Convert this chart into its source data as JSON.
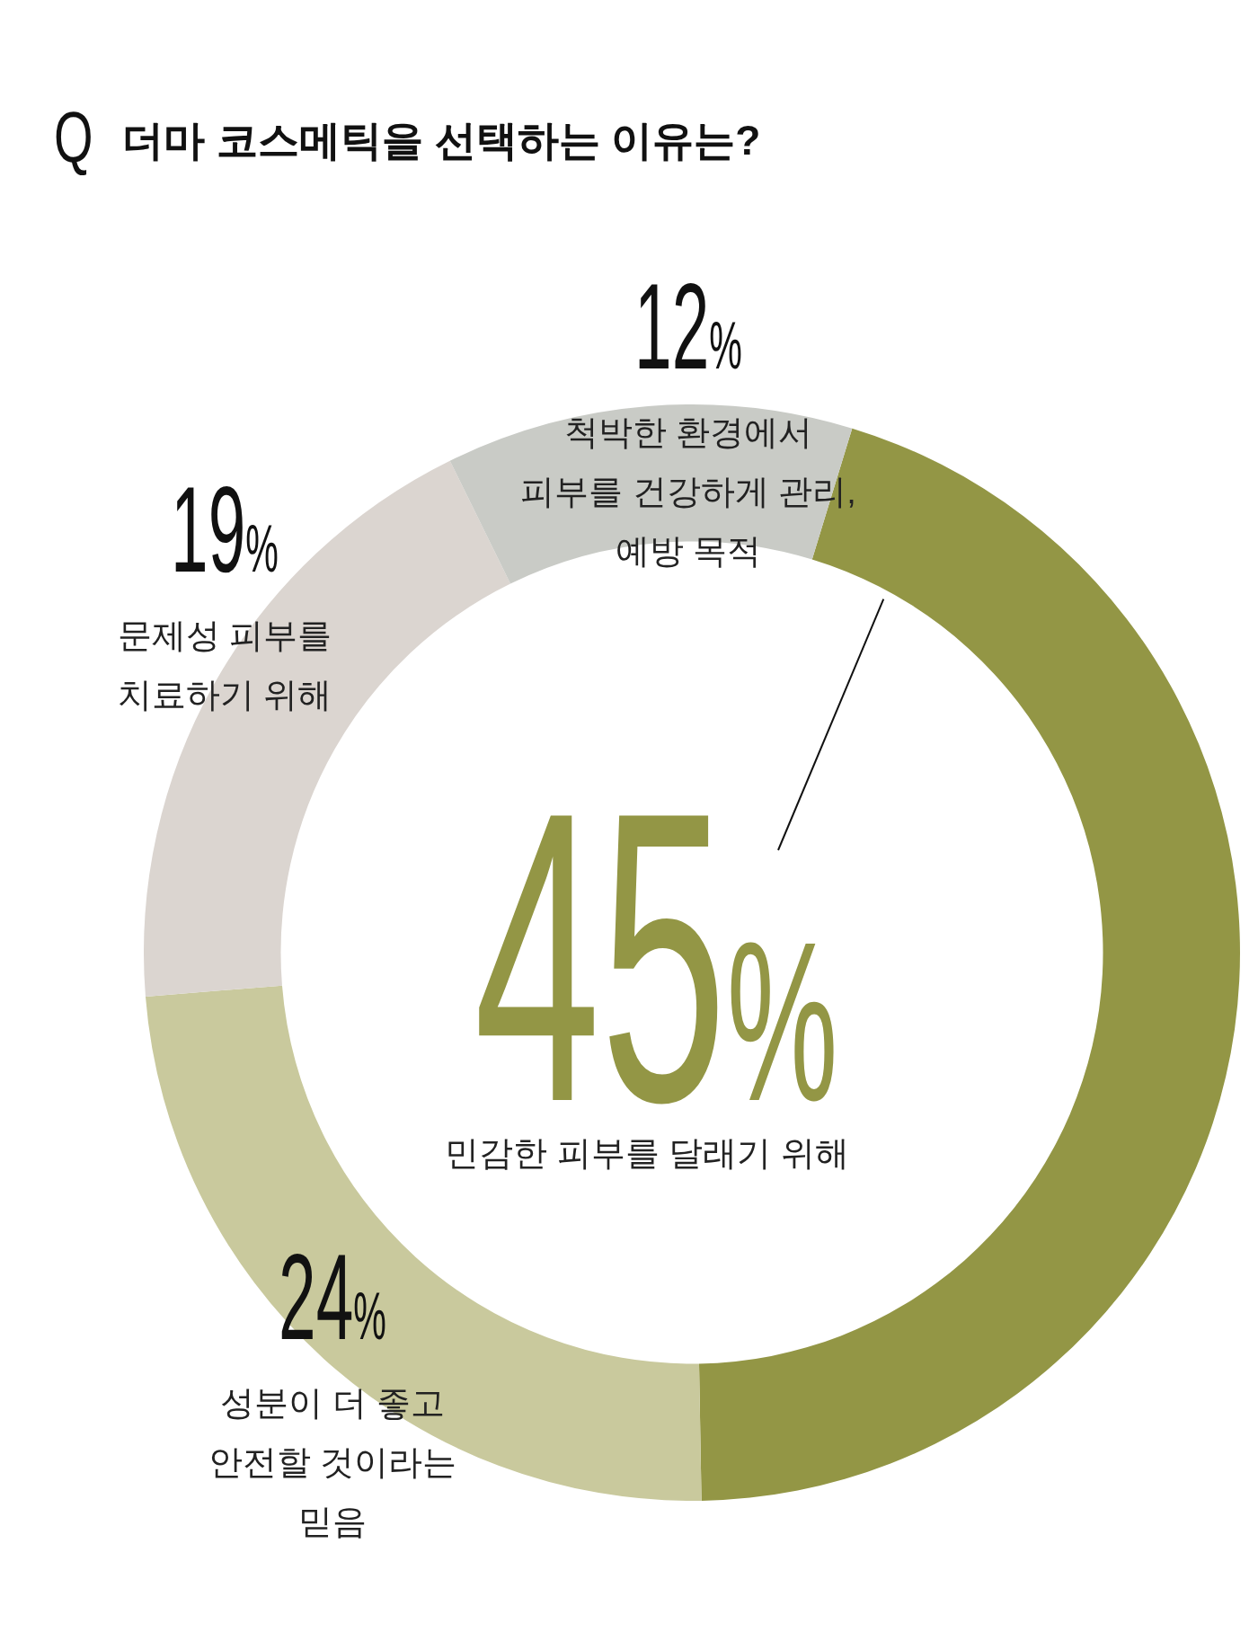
{
  "chart_data": {
    "type": "donut",
    "title": "Q 더마 코스메틱을 선택하는 이유는?",
    "categories": [
      "민감한 피부를 달래기 위해",
      "성분이 더 좋고\n안전할 것이라는\n믿음",
      "문제성 피부를\n치료하기 위해",
      "척박한 환경에서\n피부를 건강하게 관리,\n예방 목적"
    ],
    "values": [
      45,
      24,
      19,
      12
    ],
    "colors": [
      "#939645",
      "#c9c99d",
      "#dbd5d0",
      "#c9cbc6"
    ],
    "value_labels": [
      "45%",
      "24%",
      "19%",
      "12%"
    ]
  }
}
